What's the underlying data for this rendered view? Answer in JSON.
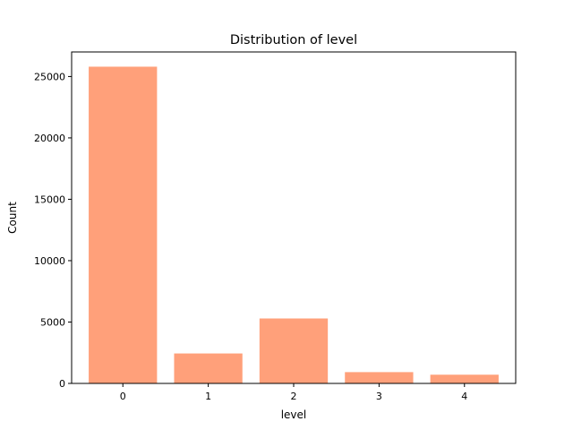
{
  "chart_data": {
    "type": "bar",
    "title": "Distribution of level",
    "xlabel": "level",
    "ylabel": "Count",
    "categories": [
      "0",
      "1",
      "2",
      "3",
      "4"
    ],
    "values": [
      25800,
      2440,
      5290,
      920,
      710
    ],
    "ylim": [
      0,
      27000
    ],
    "yticks": [
      0,
      5000,
      10000,
      15000,
      20000,
      25000
    ],
    "ytick_labels": [
      "0",
      "5000",
      "10000",
      "15000",
      "20000",
      "25000"
    ],
    "grid": false,
    "legend": "none",
    "colors": {
      "bar": "#ffa07a",
      "axes": "#000000",
      "background": "#ffffff"
    }
  }
}
